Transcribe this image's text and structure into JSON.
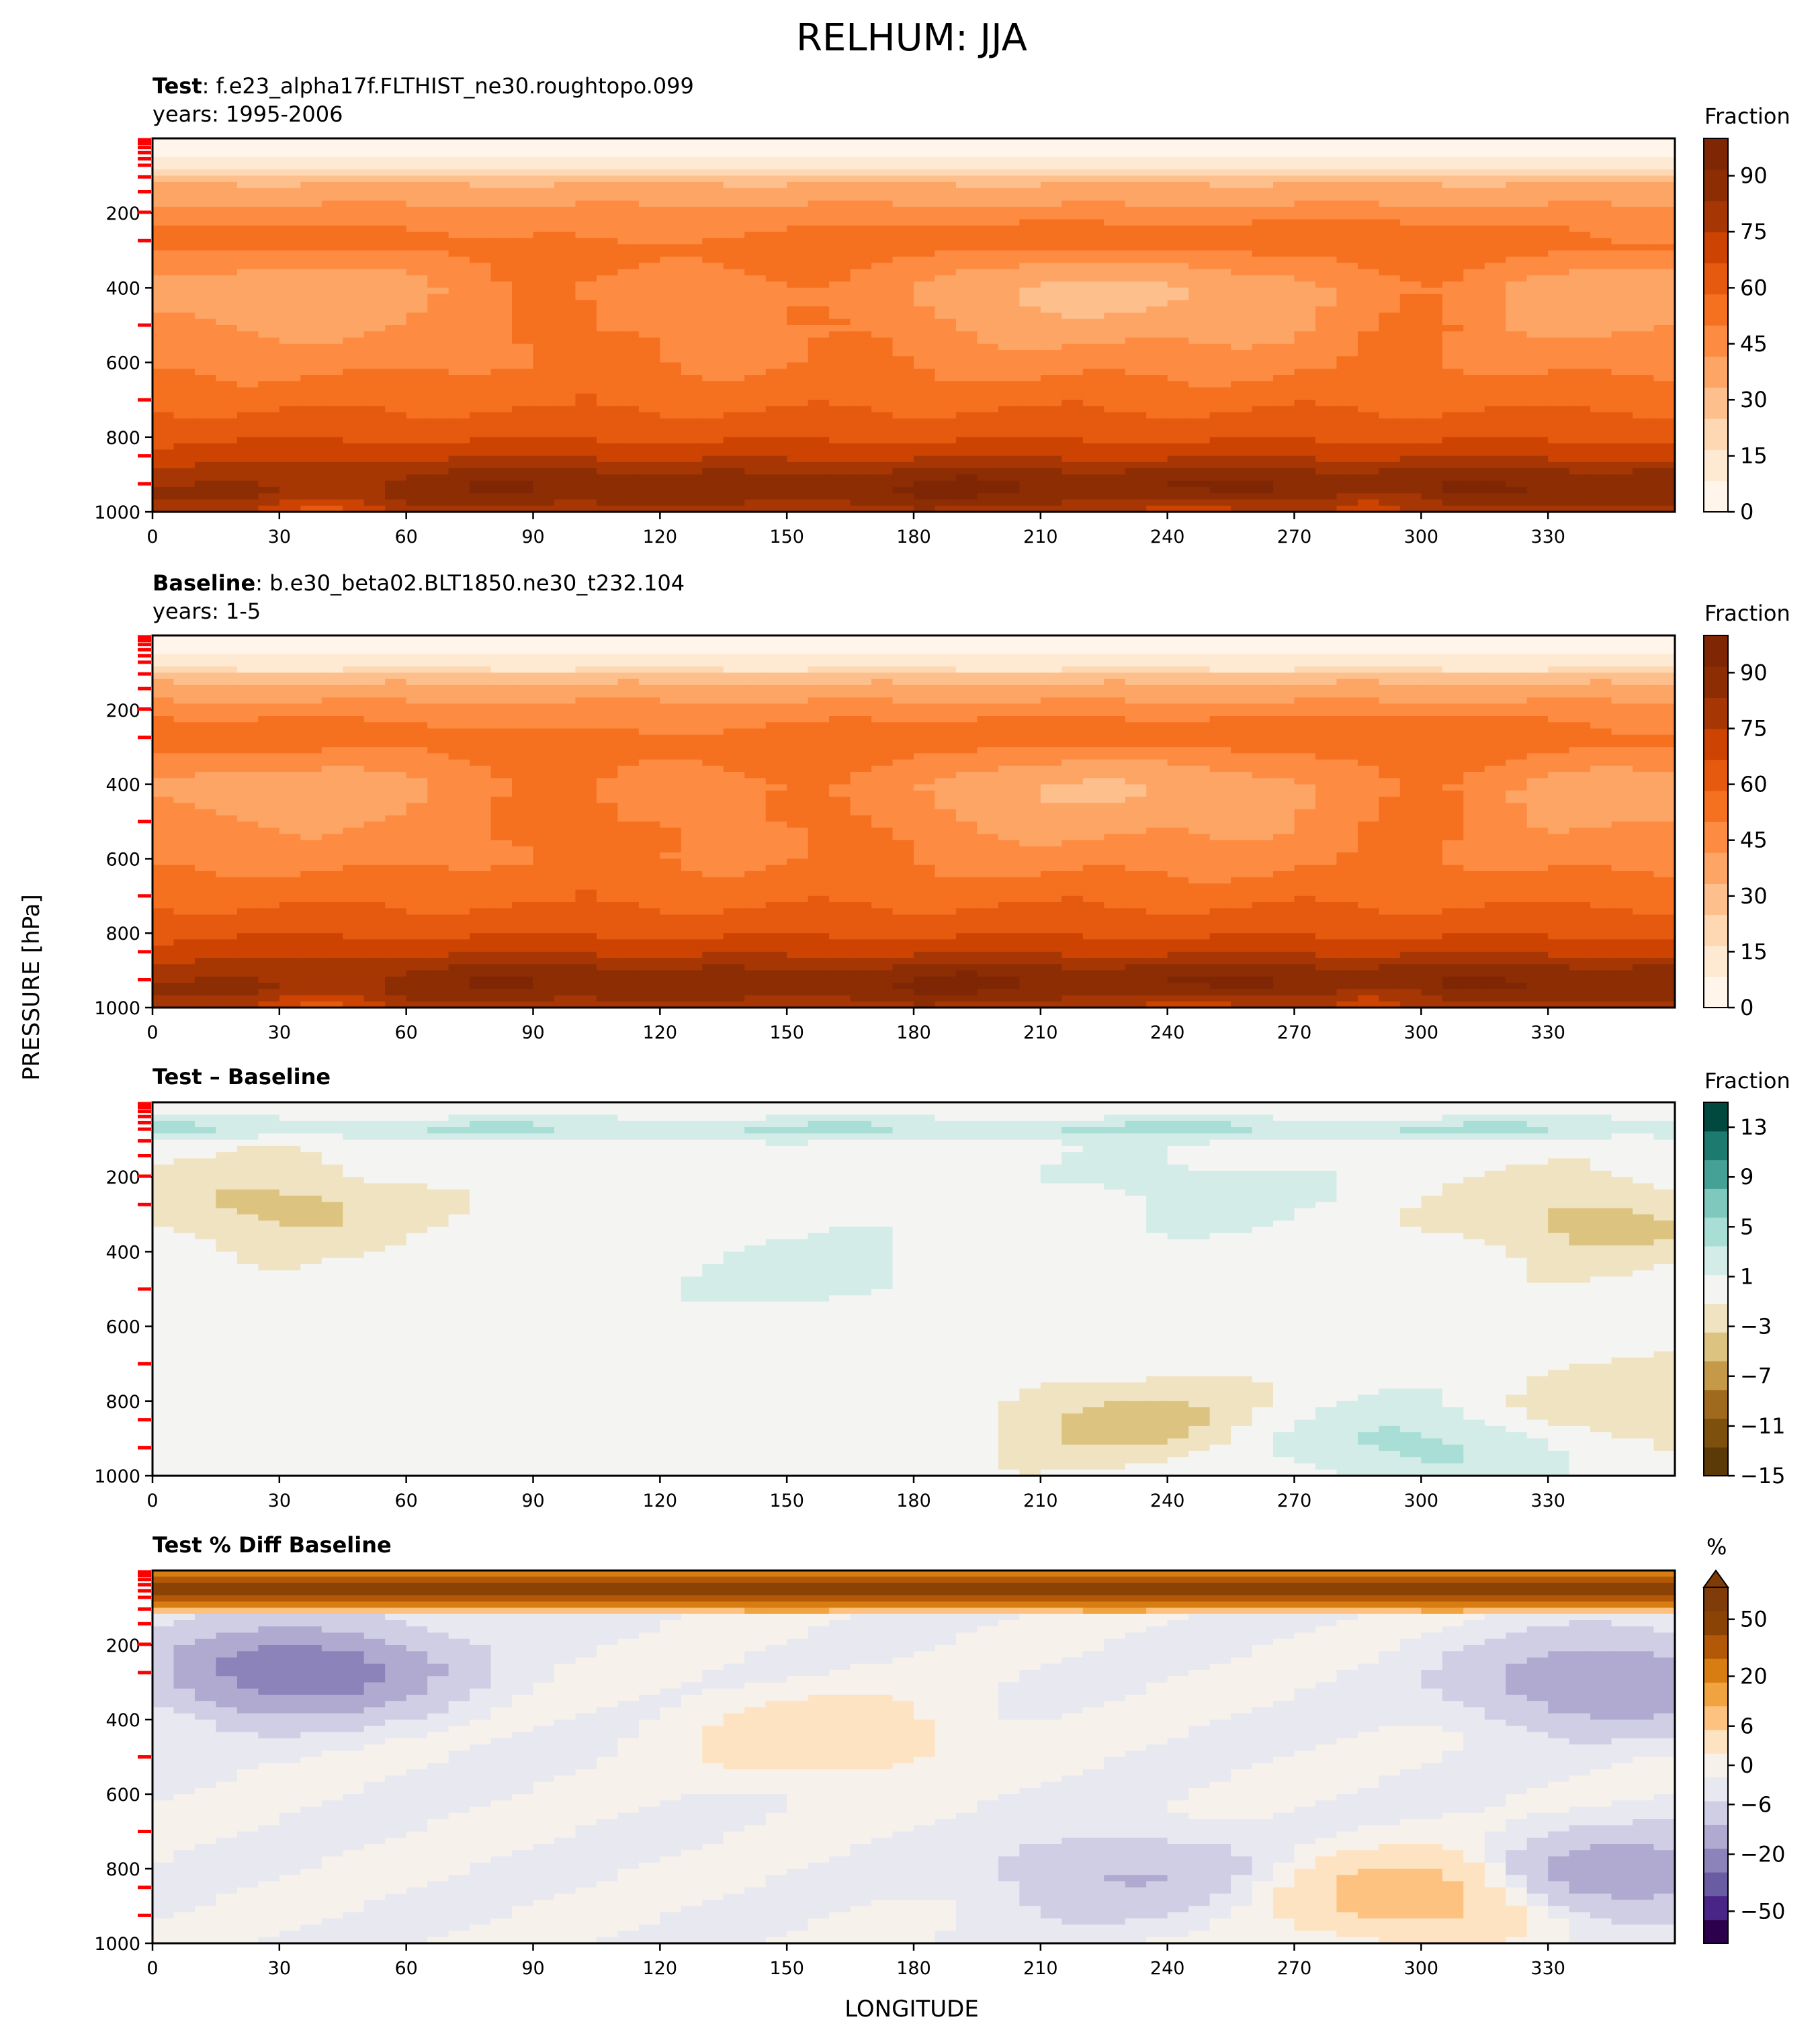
{
  "figure": {
    "suptitle": "RELHUM: JJA",
    "ylabel": "PRESSURE [hPa]",
    "xlabel": "LONGITUDE"
  },
  "palettes": {
    "oranges": [
      "#fff5eb",
      "#fee9d3",
      "#fdd8b3",
      "#fdc08d",
      "#fda565",
      "#fd8c42",
      "#f5701f",
      "#e55a0e",
      "#cc4302",
      "#a63603",
      "#8c2d04",
      "#7f2704"
    ],
    "brbg": [
      "#5c3a07",
      "#7d500e",
      "#a06a1e",
      "#c49a48",
      "#dcc37f",
      "#efe3c2",
      "#f4f4f2",
      "#d3ece8",
      "#a8ded5",
      "#7fc8be",
      "#45a096",
      "#1d7a6f",
      "#01493f"
    ],
    "puor": [
      "#2d004b",
      "#4a2588",
      "#6a5ca3",
      "#8c83bb",
      "#b1aad0",
      "#d0cee4",
      "#e8e8f1",
      "#f6f1ea",
      "#fde3c1",
      "#fdc27f",
      "#f1a340",
      "#d87d12",
      "#b35806",
      "#8a4205",
      "#7f3b08"
    ]
  },
  "chart_data": [
    {
      "type": "heatmap",
      "panel": "test",
      "title_bold": "Test",
      "title_text": ": f.e23_alpha17f.FLTHIST_ne30.roughtopo.099",
      "subtitle": "years: 1995-2006",
      "x_range": [
        0,
        360
      ],
      "x_ticks": [
        0,
        30,
        60,
        90,
        120,
        150,
        180,
        210,
        240,
        270,
        300,
        330
      ],
      "y_range": [
        1000,
        0
      ],
      "y_ticks": [
        200,
        400,
        600,
        800,
        1000
      ],
      "colorbar_label": "Fraction",
      "colorbar_ticks": [
        0,
        15,
        30,
        45,
        60,
        75,
        90
      ],
      "colorbar_range": [
        0,
        100
      ],
      "palette": "oranges",
      "pressure_levels_hpa": [
        3.6,
        7.6,
        14.4,
        24.6,
        38.3,
        54.6,
        72.0,
        87.8,
        103.3,
        121.5,
        142.9,
        168.2,
        197.9,
        232.8,
        273.9,
        322.2,
        379.1,
        445.9,
        524.7,
        609.8,
        691.4,
        763.4,
        820.9,
        859.5,
        887.0,
        912.6,
        936.2,
        957.5,
        976.3,
        992.6
      ],
      "level_markers_hpa": [
        3.6,
        7.6,
        14.4,
        24.6,
        38.3,
        54.6,
        72.0,
        103.3,
        142.9,
        197.9,
        273.9,
        500.0,
        700.0,
        850.0,
        925.0
      ],
      "profile_rh_percent": [
        [
          0,
          3
        ],
        [
          50,
          8
        ],
        [
          90,
          18
        ],
        [
          110,
          32
        ],
        [
          200,
          45
        ],
        [
          300,
          52
        ],
        [
          400,
          44
        ],
        [
          500,
          46
        ],
        [
          600,
          48
        ],
        [
          700,
          56
        ],
        [
          800,
          66
        ],
        [
          850,
          72
        ],
        [
          900,
          80
        ],
        [
          950,
          85
        ],
        [
          1000,
          78
        ]
      ]
    },
    {
      "type": "heatmap",
      "panel": "baseline",
      "title_bold": "Baseline",
      "title_text": ": b.e30_beta02.BLT1850.ne30_t232.104",
      "subtitle": "years: 1-5",
      "x_range": [
        0,
        360
      ],
      "x_ticks": [
        0,
        30,
        60,
        90,
        120,
        150,
        180,
        210,
        240,
        270,
        300,
        330
      ],
      "y_range": [
        1000,
        0
      ],
      "y_ticks": [
        200,
        400,
        600,
        800,
        1000
      ],
      "colorbar_label": "Fraction",
      "colorbar_ticks": [
        0,
        15,
        30,
        45,
        60,
        75,
        90
      ],
      "colorbar_range": [
        0,
        100
      ],
      "palette": "oranges",
      "level_markers_hpa": [
        3.6,
        7.6,
        14.4,
        24.6,
        38.3,
        54.6,
        72.0,
        103.3,
        142.9,
        197.9,
        273.9,
        500.0,
        700.0,
        850.0,
        925.0
      ],
      "profile_rh_percent": [
        [
          0,
          3
        ],
        [
          50,
          8
        ],
        [
          90,
          16
        ],
        [
          110,
          30
        ],
        [
          200,
          46
        ],
        [
          300,
          53
        ],
        [
          400,
          45
        ],
        [
          500,
          47
        ],
        [
          600,
          48
        ],
        [
          700,
          56
        ],
        [
          800,
          66
        ],
        [
          850,
          72
        ],
        [
          900,
          80
        ],
        [
          950,
          85
        ],
        [
          1000,
          78
        ]
      ]
    },
    {
      "type": "heatmap",
      "panel": "difference",
      "title_bold": "Test – Baseline",
      "x_range": [
        0,
        360
      ],
      "x_ticks": [
        0,
        30,
        60,
        90,
        120,
        150,
        180,
        210,
        240,
        270,
        300,
        330
      ],
      "y_range": [
        1000,
        0
      ],
      "y_ticks": [
        200,
        400,
        600,
        800,
        1000
      ],
      "colorbar_label": "Fraction",
      "colorbar_ticks": [
        -15,
        -11,
        -7,
        -3,
        1,
        5,
        9,
        13
      ],
      "colorbar_range": [
        -15,
        15
      ],
      "palette": "brbg",
      "level_markers_hpa": [
        3.6,
        7.6,
        14.4,
        24.6,
        38.3,
        54.6,
        72.0,
        103.3,
        142.9,
        197.9,
        273.9,
        500.0,
        700.0,
        850.0,
        925.0
      ],
      "features": [
        {
          "kind": "band",
          "p_range": [
            40,
            100
          ],
          "value": 3,
          "lon_range": [
            0,
            360
          ]
        },
        {
          "kind": "blob",
          "lon": 30,
          "p": 280,
          "value": -4
        },
        {
          "kind": "blob",
          "lon": 340,
          "p": 320,
          "value": -4
        },
        {
          "kind": "blob",
          "lon": 230,
          "p": 850,
          "value": -4
        },
        {
          "kind": "blob",
          "lon": 350,
          "p": 820,
          "value": -3
        },
        {
          "kind": "blob",
          "lon": 160,
          "p": 470,
          "value": 2
        },
        {
          "kind": "blob",
          "lon": 245,
          "p": 230,
          "value": 2
        },
        {
          "kind": "blob",
          "lon": 300,
          "p": 920,
          "value": 4
        }
      ]
    },
    {
      "type": "heatmap",
      "panel": "percent_difference",
      "title_bold": "Test % Diff Baseline",
      "x_range": [
        0,
        360
      ],
      "x_ticks": [
        0,
        30,
        60,
        90,
        120,
        150,
        180,
        210,
        240,
        270,
        300,
        330
      ],
      "y_range": [
        1000,
        0
      ],
      "y_ticks": [
        200,
        400,
        600,
        800,
        1000
      ],
      "colorbar_label": "%",
      "colorbar_ticks": [
        -50,
        -20,
        -6,
        0,
        6,
        20,
        50
      ],
      "palette": "puor",
      "extend": "max",
      "level_markers_hpa": [
        3.6,
        7.6,
        14.4,
        24.6,
        38.3,
        54.6,
        72.0,
        103.3,
        142.9,
        197.9,
        273.9,
        500.0,
        700.0,
        850.0,
        925.0
      ],
      "features": [
        {
          "kind": "band",
          "p_range": [
            0,
            100
          ],
          "value": 60,
          "lon_range": [
            0,
            360
          ]
        },
        {
          "kind": "blob",
          "lon": 35,
          "p": 270,
          "value": -18
        },
        {
          "kind": "blob",
          "lon": 345,
          "p": 300,
          "value": -12
        },
        {
          "kind": "blob",
          "lon": 345,
          "p": 820,
          "value": -10
        },
        {
          "kind": "blob",
          "lon": 230,
          "p": 820,
          "value": -6
        },
        {
          "kind": "blob",
          "lon": 160,
          "p": 450,
          "value": 5
        },
        {
          "kind": "blob",
          "lon": 300,
          "p": 870,
          "value": 10
        }
      ]
    }
  ]
}
